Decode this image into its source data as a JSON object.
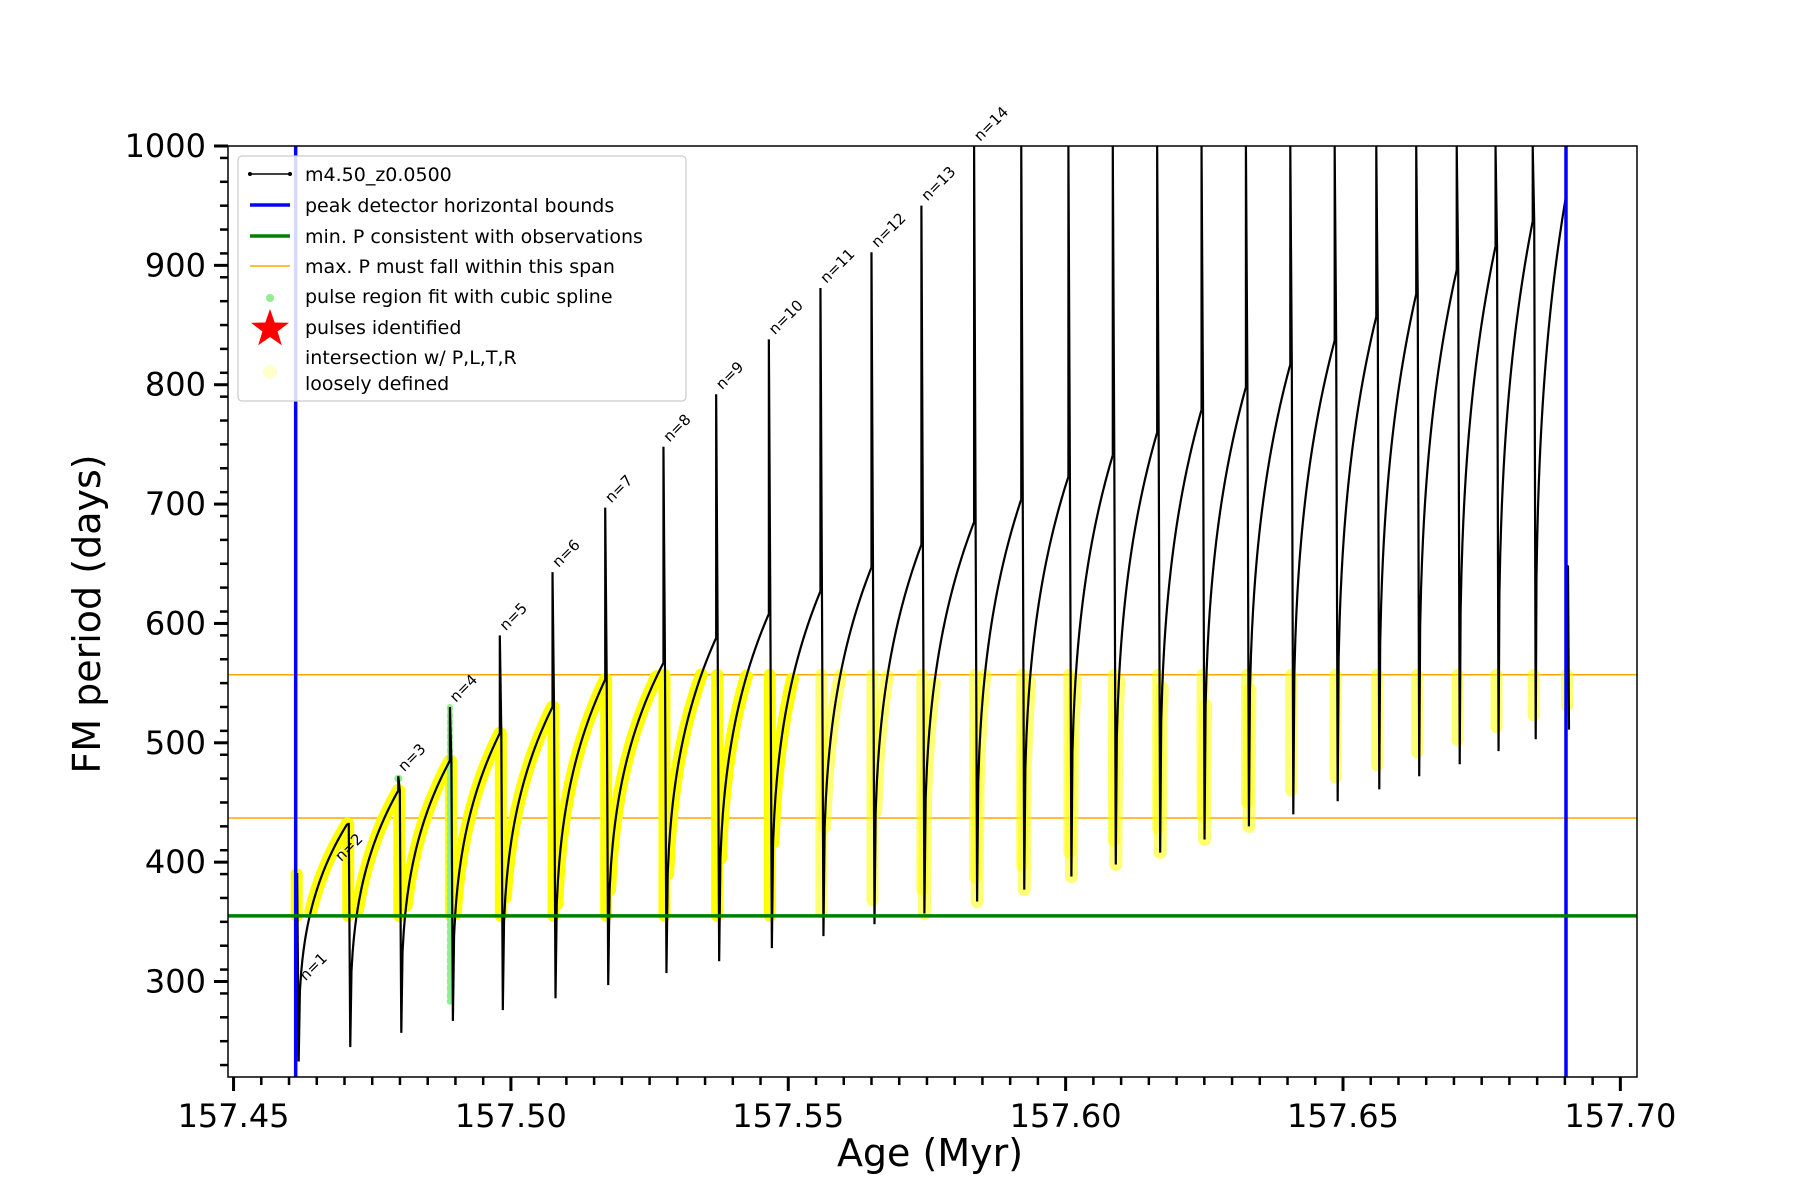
{
  "chart_data": {
    "type": "line",
    "xlabel": "Age (Myr)",
    "ylabel": "FM period (days)",
    "xlim": [
      157.449,
      157.703
    ],
    "ylim": [
      220,
      1000
    ],
    "x_ticks": [
      157.45,
      157.5,
      157.55,
      157.6,
      157.65,
      157.7
    ],
    "x_tick_labels": [
      "157.45",
      "157.50",
      "157.55",
      "157.60",
      "157.65",
      "157.70"
    ],
    "y_ticks": [
      300,
      400,
      500,
      600,
      700,
      800,
      900,
      1000
    ],
    "y_tick_labels": [
      "300",
      "400",
      "500",
      "600",
      "700",
      "800",
      "900",
      "1000"
    ],
    "grid": false,
    "legend_position": "top-left",
    "legend": [
      {
        "label": "m4.50_z0.0500",
        "marker": "line-with-dots",
        "color": "#000000"
      },
      {
        "label": "peak detector horizontal bounds",
        "marker": "line",
        "color": "#0000ff"
      },
      {
        "label": "min. P consistent with observations",
        "marker": "line",
        "color": "#008000"
      },
      {
        "label": "max. P must fall within this span",
        "marker": "thin-line",
        "color": "#ffa500"
      },
      {
        "label": "pulse region fit with cubic spline",
        "marker": "dot",
        "color": "#90ee90"
      },
      {
        "label": "pulses identified",
        "marker": "star",
        "color": "#ff0000"
      },
      {
        "label": "intersection w/ P,L,T,R",
        "label2": "loosely defined",
        "marker": "circle",
        "color": "#ffffcc"
      }
    ],
    "colors": {
      "track": "#000000",
      "bounds": "#0000ff",
      "min_period": "#008000",
      "max_period_span": "#ffa500",
      "spline": "#90ee90",
      "intersection": "#ffff00"
    },
    "vertical_bounds_x": [
      157.4612,
      157.6902
    ],
    "min_period_line": 355,
    "max_period_span": [
      437,
      557
    ],
    "pulses": [
      {
        "label": "n=1",
        "age": 157.4612,
        "start": 390,
        "min": 233,
        "peak": 390
      },
      {
        "label": "n=2",
        "age": 157.4705,
        "start": 432,
        "min": 245,
        "peak": 432
      },
      {
        "label": "n=3",
        "age": 157.4797,
        "start": 460,
        "min": 257,
        "peak": 472
      },
      {
        "label": "n=4",
        "age": 157.489,
        "start": 485,
        "min": 267,
        "peak": 530
      },
      {
        "label": "n=5",
        "age": 157.498,
        "start": 508,
        "min": 276,
        "peak": 590
      },
      {
        "label": "n=6",
        "age": 157.5075,
        "start": 530,
        "min": 286,
        "peak": 643
      },
      {
        "label": "n=7",
        "age": 157.517,
        "start": 553,
        "min": 297,
        "peak": 697
      },
      {
        "label": "n=8",
        "age": 157.5275,
        "start": 567,
        "min": 307,
        "peak": 748
      },
      {
        "label": "n=9",
        "age": 157.537,
        "start": 588,
        "min": 317,
        "peak": 792
      },
      {
        "label": "n=10",
        "age": 157.5465,
        "start": 608,
        "min": 328,
        "peak": 838
      },
      {
        "label": "n=11",
        "age": 157.5558,
        "start": 627,
        "min": 338,
        "peak": 881
      },
      {
        "label": "n=12",
        "age": 157.565,
        "start": 647,
        "min": 348,
        "peak": 911
      },
      {
        "label": "n=13",
        "age": 157.574,
        "start": 666,
        "min": 357,
        "peak": 950
      },
      {
        "label": "n=14",
        "age": 157.5835,
        "start": 685,
        "min": 367,
        "peak": 1000
      },
      {
        "label": "",
        "age": 157.592,
        "start": 704,
        "min": 377,
        "peak": 1000
      },
      {
        "label": "",
        "age": 157.6005,
        "start": 723,
        "min": 388,
        "peak": 1000
      },
      {
        "label": "",
        "age": 157.6085,
        "start": 741,
        "min": 398,
        "peak": 1000
      },
      {
        "label": "",
        "age": 157.6165,
        "start": 760,
        "min": 408,
        "peak": 1000
      },
      {
        "label": "",
        "age": 157.6245,
        "start": 779,
        "min": 419,
        "peak": 1000
      },
      {
        "label": "",
        "age": 157.6325,
        "start": 798,
        "min": 430,
        "peak": 1000
      },
      {
        "label": "",
        "age": 157.6405,
        "start": 817,
        "min": 440,
        "peak": 1000
      },
      {
        "label": "",
        "age": 157.6485,
        "start": 837,
        "min": 451,
        "peak": 1000
      },
      {
        "label": "",
        "age": 157.656,
        "start": 857,
        "min": 461,
        "peak": 1000
      },
      {
        "label": "",
        "age": 157.6632,
        "start": 876,
        "min": 472,
        "peak": 1000
      },
      {
        "label": "",
        "age": 157.6705,
        "start": 896,
        "min": 482,
        "peak": 1000
      },
      {
        "label": "",
        "age": 157.6775,
        "start": 916,
        "min": 493,
        "peak": 1000
      },
      {
        "label": "",
        "age": 157.6842,
        "start": 937,
        "min": 503,
        "peak": 1000
      },
      {
        "label": "",
        "age": 157.6902,
        "start": 958,
        "min": 511,
        "peak": 648
      }
    ]
  }
}
